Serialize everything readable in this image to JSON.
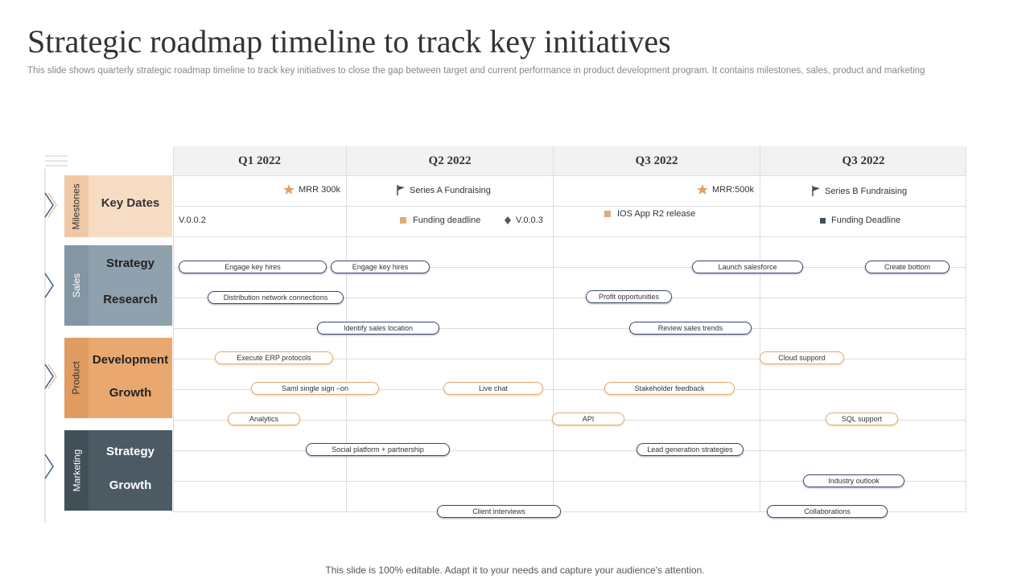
{
  "title": "Strategic roadmap timeline to track key initiatives",
  "subtitle": "This slide shows quarterly strategic roadmap timeline to track key initiatives to close the gap between target and current performance in product development program. It contains milestones, sales, product and marketing",
  "footer": "This slide is 100% editable. Adapt it to your needs and capture your audience's attention.",
  "quarters": [
    "Q1 2022",
    "Q2 2022",
    "Q3 2022",
    "Q3 2022"
  ],
  "sections": [
    {
      "label": "Milestones",
      "rows": [
        "Key Dates"
      ]
    },
    {
      "label": "Sales",
      "rows": [
        "Strategy",
        "Research"
      ]
    },
    {
      "label": "Product",
      "rows": [
        "Development",
        "Growth"
      ]
    },
    {
      "label": "Marketing",
      "rows": [
        "Strategy",
        "Growth"
      ]
    }
  ],
  "milestones": [
    "MRR  300k",
    "Series A Fundraising",
    "MRR:500k",
    "Series B Fundraising",
    "V.0.0.2",
    "Funding deadline",
    "V.0.0.3",
    "IOS App R2 release",
    "Funding Deadline"
  ],
  "tasks": [
    "Engage key hires",
    "Engage key hires",
    "Launch salesforce",
    "Create bottom",
    "Distribution network connections",
    "Profit opportunities",
    "Identify sales location",
    "Review sales trends",
    "Execute ERP protocols",
    "Cloud suppord",
    "Saml single sign –on",
    "Live chat",
    "Stakeholder feedback",
    "Analytics",
    "API",
    "SQL support",
    "Social platform + partnership",
    "Lead generation strategies",
    "Industry outlook",
    "Client interviews",
    "Collaborations"
  ]
}
